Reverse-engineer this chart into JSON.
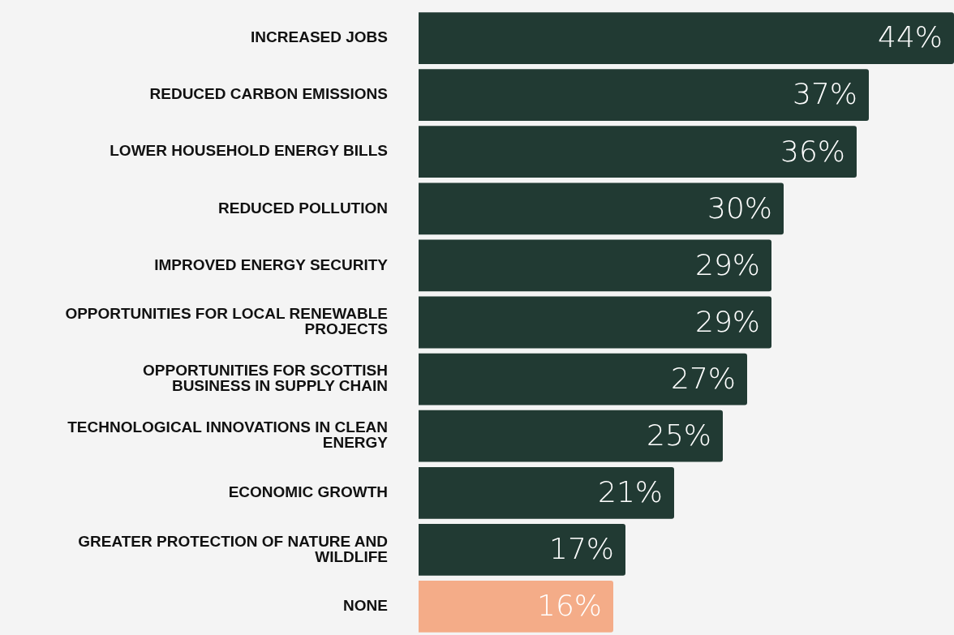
{
  "chart_data": {
    "type": "bar",
    "orientation": "horizontal",
    "categories": [
      "INCREASED JOBS",
      "REDUCED CARBON EMISSIONS",
      "LOWER HOUSEHOLD ENERGY BILLS",
      "REDUCED POLLUTION",
      "IMPROVED ENERGY SECURITY",
      "OPPORTUNITIES FOR LOCAL RENEWABLE PROJECTS",
      "OPPORTUNITIES FOR SCOTTISH BUSINESS IN SUPPLY CHAIN",
      "TECHNOLOGICAL INNOVATIONS IN CLEAN ENERGY",
      "ECONOMIC GROWTH",
      "GREATER PROTECTION OF NATURE AND WILDLIFE",
      "NONE"
    ],
    "values": [
      44,
      37,
      36,
      30,
      29,
      29,
      27,
      25,
      21,
      17,
      16
    ],
    "value_labels": [
      "44%",
      "37%",
      "36%",
      "30%",
      "29%",
      "29%",
      "27%",
      "25%",
      "21%",
      "17%",
      "16%"
    ],
    "colors": [
      "#213a33",
      "#213a33",
      "#213a33",
      "#213a33",
      "#213a33",
      "#213a33",
      "#213a33",
      "#213a33",
      "#213a33",
      "#213a33",
      "#f4ac88"
    ],
    "tick_labels": "y",
    "grid": false,
    "legend": false
  }
}
